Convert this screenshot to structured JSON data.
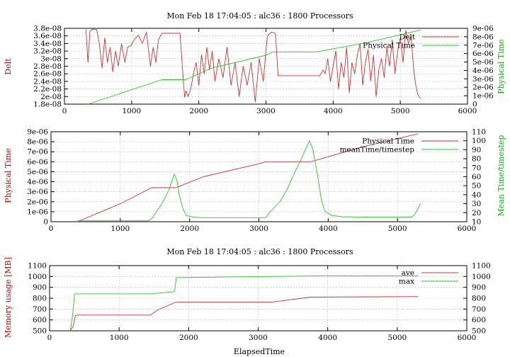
{
  "colors": {
    "series1": "#cc3333",
    "series2": "#22cc22",
    "grid": "#b0b0b0"
  },
  "chart_data": [
    {
      "type": "line",
      "title": "Mon Feb 18 17:04:05 : alc36 : 1800 Processors",
      "xlabel": "",
      "ylabel": "Delt",
      "y2label": "Physical Time",
      "xlim": [
        0,
        6000
      ],
      "ylim": [
        1.8e-08,
        3.8e-08
      ],
      "y2lim": [
        0,
        9e-06
      ],
      "xticks": [
        "0",
        "1000",
        "2000",
        "3000",
        "4000",
        "5000",
        "6000"
      ],
      "yticks": [
        "1.8e-08",
        "2e-08",
        "2.2e-08",
        "2.4e-08",
        "2.6e-08",
        "2.8e-08",
        "3e-08",
        "3.2e-08",
        "3.4e-08",
        "3.6e-08",
        "3.8e-08"
      ],
      "y2ticks": [
        "0",
        "1e-06",
        "2e-06",
        "3e-06",
        "4e-06",
        "5e-06",
        "6e-06",
        "7e-06",
        "8e-06",
        "9e-06"
      ],
      "grid": true,
      "legend_position": "top-right",
      "series": [
        {
          "name": "Delt",
          "axis": "y",
          "color": "#cc3333",
          "x": [
            320,
            350,
            380,
            420,
            480,
            520,
            560,
            600,
            640,
            680,
            720,
            760,
            800,
            850,
            900,
            940,
            990,
            1040,
            1100,
            1160,
            1220,
            1280,
            1320,
            1360,
            1400,
            1450,
            1500,
            1560,
            1620,
            1680,
            1720,
            1770,
            1790,
            1810,
            1840,
            1880,
            1920,
            1960,
            2000,
            2040,
            2080,
            2120,
            2160,
            2200,
            2240,
            2300,
            2360,
            2420,
            2480,
            2540,
            2600,
            2660,
            2720,
            2780,
            2840,
            2900,
            2960,
            3020,
            3080,
            3140,
            3180,
            3240,
            3300,
            3400,
            3500,
            3600,
            3700,
            3800,
            3850,
            3880,
            3920,
            3960,
            4000,
            4040,
            4080,
            4120,
            4160,
            4200,
            4240,
            4280,
            4320,
            4360,
            4400,
            4440,
            4480,
            4520,
            4560,
            4600,
            4640,
            4680,
            4720,
            4760,
            4800,
            4840,
            4880,
            4920,
            4960,
            5000,
            5040,
            5080,
            5120,
            5160,
            5200,
            5230,
            5260,
            5300
          ],
          "y": [
            3.77e-08,
            2.9e-08,
            3.72e-08,
            3.78e-08,
            3.76e-08,
            3.4e-08,
            2.75e-08,
            3.55e-08,
            2.9e-08,
            3.3e-08,
            2.65e-08,
            3.2e-08,
            2.8e-08,
            3.4e-08,
            2.9e-08,
            3.3e-08,
            3.35e-08,
            3.5e-08,
            3.62e-08,
            3.4e-08,
            3.7e-08,
            2.8e-08,
            3.3e-08,
            2.9e-08,
            3.5e-08,
            3.67e-08,
            3.67e-08,
            3.67e-08,
            3.67e-08,
            3.67e-08,
            3.67e-08,
            2.4e-08,
            1.98e-08,
            2.15e-08,
            2e-08,
            2.2e-08,
            2.6e-08,
            2.9e-08,
            2.3e-08,
            3.1e-08,
            2.6e-08,
            3.3e-08,
            2.7e-08,
            3.2e-08,
            2.4e-08,
            3e-08,
            2.5e-08,
            3.3e-08,
            2.3e-08,
            2.9e-08,
            2e-08,
            2.8e-08,
            2.3e-08,
            2.9e-08,
            1.85e-08,
            3e-08,
            2.4e-08,
            3.6e-08,
            3.7e-08,
            3.67e-08,
            2.55e-08,
            2.55e-08,
            2.55e-08,
            2.55e-08,
            2.55e-08,
            2.55e-08,
            2.55e-08,
            2.55e-08,
            2.7e-08,
            2.6e-08,
            3e-08,
            2.4e-08,
            2.8e-08,
            3.2e-08,
            2.2e-08,
            2.9e-08,
            2.5e-08,
            3.3e-08,
            2.1e-08,
            2.9e-08,
            2.6e-08,
            3.1e-08,
            3.4e-08,
            2.3e-08,
            2.9e-08,
            3.25e-08,
            2.4e-08,
            3.1e-08,
            2e-08,
            2.7e-08,
            3e-08,
            2.5e-08,
            3.3e-08,
            2.8e-08,
            3.5e-08,
            2.6e-08,
            3.2e-08,
            3.55e-08,
            2.9e-08,
            3.75e-08,
            3.4e-08,
            3.6e-08,
            2.7e-08,
            2.3e-08,
            2.05e-08,
            1.95e-08
          ]
        },
        {
          "name": "Physical Time",
          "axis": "y2",
          "color": "#22cc22",
          "x": [
            350,
            1450,
            1800,
            2200,
            3000,
            3100,
            3200,
            3750,
            4500,
            5300
          ],
          "y": [
            0,
            2.9e-06,
            2.9e-06,
            4.3e-06,
            5.8e-06,
            6.2e-06,
            6.2e-06,
            6.2e-06,
            7.3e-06,
            8.8e-06
          ]
        }
      ]
    },
    {
      "type": "line",
      "title": "",
      "xlabel": "",
      "ylabel": "Physical Time",
      "y2label": "Mean Time/timestep",
      "xlim": [
        0,
        6000
      ],
      "ylim": [
        0,
        9e-06
      ],
      "y2lim": [
        10,
        110
      ],
      "xticks": [
        "0",
        "1000",
        "2000",
        "3000",
        "4000",
        "5000",
        "6000"
      ],
      "yticks": [
        "0",
        "1e-06",
        "2e-06",
        "3e-06",
        "4e-06",
        "5e-06",
        "6e-06",
        "7e-06",
        "8e-06",
        "9e-06"
      ],
      "y2ticks": [
        "10",
        "20",
        "30",
        "40",
        "50",
        "60",
        "70",
        "80",
        "90",
        "100",
        "110"
      ],
      "grid": true,
      "legend_position": "top-right",
      "series": [
        {
          "name": "Physical Time",
          "axis": "y",
          "color": "#cc3333",
          "x": [
            380,
            1000,
            1450,
            1800,
            2200,
            3000,
            3100,
            3200,
            3750,
            4500,
            5300
          ],
          "y": [
            0,
            1.8e-06,
            3.4e-06,
            3.4e-06,
            4.5e-06,
            5.8e-06,
            6e-06,
            6e-06,
            6e-06,
            7.5e-06,
            8.8e-06
          ]
        },
        {
          "name": "meanTime/timestep",
          "axis": "y2",
          "color": "#22cc22",
          "x": [
            380,
            1400,
            1450,
            1600,
            1700,
            1780,
            1820,
            1850,
            1900,
            1950,
            2050,
            2200,
            2500,
            2900,
            3100,
            3150,
            3300,
            3400,
            3500,
            3600,
            3700,
            3730,
            3780,
            3850,
            3900,
            3950,
            4050,
            4200,
            4600,
            5000,
            5200,
            5250,
            5330
          ],
          "y": [
            11,
            11,
            13,
            30,
            45,
            63,
            55,
            40,
            25,
            17,
            15,
            14.5,
            14.5,
            14.5,
            14.5,
            20,
            32,
            45,
            62,
            78,
            95,
            100,
            90,
            60,
            35,
            22,
            17,
            15.5,
            15,
            15,
            15,
            18,
            30
          ]
        }
      ]
    },
    {
      "type": "line",
      "title": "Mon Feb 18 17:04:05 : alc36 : 1800 Processors",
      "xlabel": "ElapsedTime",
      "ylabel": "Memory usage [MB]",
      "y2label": "",
      "xlim": [
        0,
        6000
      ],
      "ylim": [
        500,
        1100
      ],
      "y2lim": [
        500,
        1100
      ],
      "xticks": [
        "0",
        "1000",
        "2000",
        "3000",
        "4000",
        "5000",
        "6000"
      ],
      "yticks": [
        "500",
        "600",
        "700",
        "800",
        "900",
        "1000",
        "1100"
      ],
      "y2ticks": [
        "500",
        "600",
        "700",
        "800",
        "900",
        "1000",
        "1100"
      ],
      "grid": true,
      "legend_position": "top-right",
      "series": [
        {
          "name": "ave",
          "axis": "y",
          "color": "#cc3333",
          "x": [
            300,
            340,
            370,
            400,
            1450,
            1550,
            1800,
            1900,
            3200,
            3750,
            5300
          ],
          "y": [
            505,
            540,
            640,
            645,
            645,
            690,
            760,
            765,
            765,
            810,
            815
          ]
        },
        {
          "name": "max",
          "axis": "y",
          "color": "#22cc22",
          "x": [
            300,
            330,
            360,
            400,
            1450,
            1780,
            1800,
            1820,
            1850,
            2500,
            3200,
            3800,
            5300
          ],
          "y": [
            505,
            640,
            840,
            840,
            840,
            860,
            865,
            990,
            990,
            995,
            1000,
            1005,
            1005
          ]
        }
      ]
    }
  ]
}
